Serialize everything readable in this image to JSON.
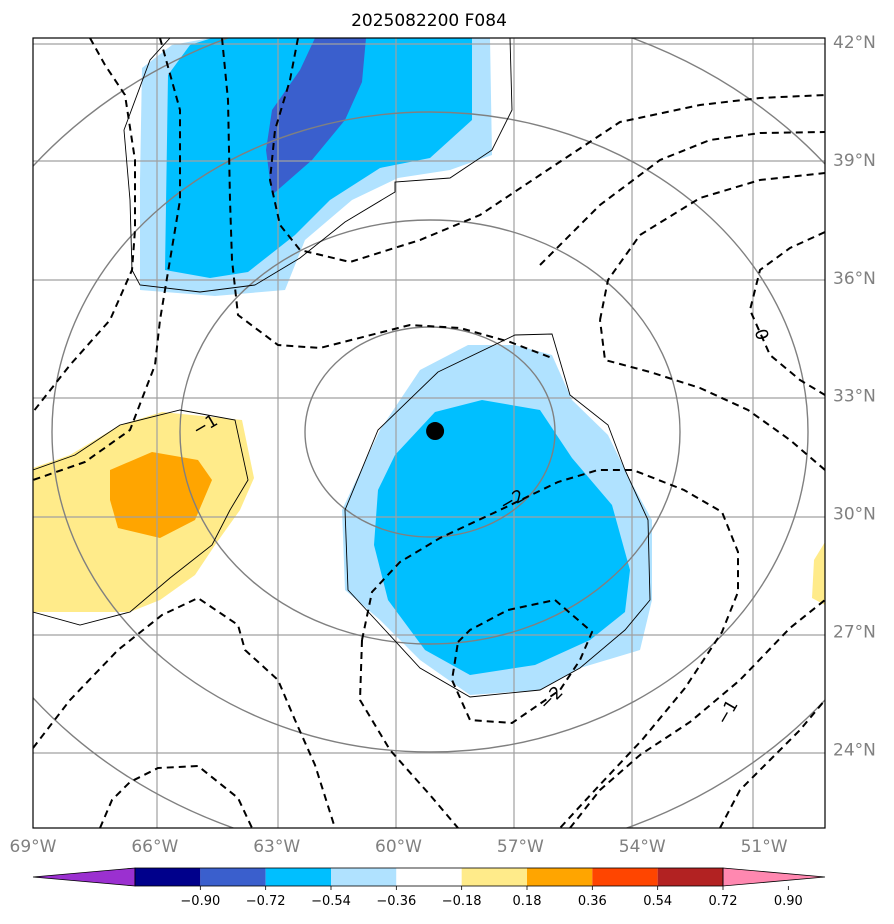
{
  "chart_data": {
    "type": "heatmap",
    "title": "2025082200 F084",
    "projection": "map",
    "lon_range": [
      -69,
      -49.5
    ],
    "lat_range": [
      22,
      42.1
    ],
    "lon_ticks": [
      "69°W",
      "66°W",
      "63°W",
      "60°W",
      "57°W",
      "54°W",
      "51°W"
    ],
    "lat_ticks": [
      "42°N",
      "39°N",
      "36°N",
      "33°N",
      "30°N",
      "27°N",
      "24°N"
    ],
    "grid": true,
    "colorbar": {
      "orientation": "horizontal",
      "extend": "both",
      "colors": [
        "#9b30d0",
        "#00008b",
        "#3a5fcd",
        "#00bfff",
        "#b0e2ff",
        "#ffffff",
        "#ffeb8a",
        "#ffa500",
        "#ff4500",
        "#b22222",
        "#ff88b0"
      ],
      "levels": [
        "−0.90",
        "−0.72",
        "−0.54",
        "−0.36",
        "−0.18",
        "0.18",
        "0.36",
        "0.54",
        "0.72",
        "0.90"
      ]
    },
    "contour_labels": [
      "0",
      "−1",
      "−2",
      "−2",
      "−1"
    ],
    "center_marker": {
      "lon": -59.1,
      "lat": 32.1
    }
  }
}
